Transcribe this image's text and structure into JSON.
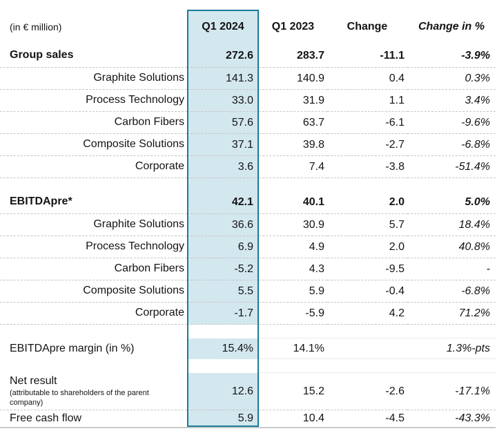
{
  "unit_label": "(in € million)",
  "columns": [
    {
      "label": "Q1 2024"
    },
    {
      "label": "Q1 2023"
    },
    {
      "label": "Change"
    },
    {
      "label": "Change in %"
    }
  ],
  "colors": {
    "highlight_fill": "#d3e7ef",
    "highlight_border": "#1b7b95"
  },
  "rows": [
    {
      "type": "section",
      "label": "Group sales",
      "values": [
        "272.6",
        "283.7",
        "-11.1",
        "-3.9%"
      ]
    },
    {
      "type": "sub",
      "label": "Graphite Solutions",
      "values": [
        "141.3",
        "140.9",
        "0.4",
        "0.3%"
      ]
    },
    {
      "type": "sub",
      "label": "Process Technology",
      "values": [
        "33.0",
        "31.9",
        "1.1",
        "3.4%"
      ]
    },
    {
      "type": "sub",
      "label": "Carbon Fibers",
      "values": [
        "57.6",
        "63.7",
        "-6.1",
        "-9.6%"
      ]
    },
    {
      "type": "sub",
      "label": "Composite Solutions",
      "values": [
        "37.1",
        "39.8",
        "-2.7",
        "-6.8%"
      ]
    },
    {
      "type": "sub",
      "label": "Corporate",
      "values": [
        "3.6",
        "7.4",
        "-3.8",
        "-51.4%"
      ]
    },
    {
      "type": "spacer-highlight",
      "label": "",
      "values": [
        "",
        "",
        "",
        ""
      ]
    },
    {
      "type": "section",
      "label": "EBITDApre*",
      "values": [
        "42.1",
        "40.1",
        "2.0",
        "5.0%"
      ]
    },
    {
      "type": "sub",
      "label": "Graphite Solutions",
      "values": [
        "36.6",
        "30.9",
        "5.7",
        "18.4%"
      ]
    },
    {
      "type": "sub",
      "label": "Process Technology",
      "values": [
        "6.9",
        "4.9",
        "2.0",
        "40.8%"
      ]
    },
    {
      "type": "sub",
      "label": "Carbon Fibers",
      "values": [
        "-5.2",
        "4.3",
        "-9.5",
        "-"
      ]
    },
    {
      "type": "sub",
      "label": "Composite Solutions",
      "values": [
        "5.5",
        "5.9",
        "-0.4",
        "-6.8%"
      ]
    },
    {
      "type": "sub",
      "label": "Corporate",
      "values": [
        "-1.7",
        "-5.9",
        "4.2",
        "71.2%"
      ]
    },
    {
      "type": "spacer-plain",
      "label": "",
      "values": [
        "",
        "",
        "",
        ""
      ]
    },
    {
      "type": "plain",
      "label": "EBITDApre margin (in %)",
      "values": [
        "15.4%",
        "14.1%",
        "",
        "1.3%-pts"
      ]
    },
    {
      "type": "spacer-plain",
      "label": "",
      "values": [
        "",
        "",
        "",
        ""
      ]
    },
    {
      "type": "multi",
      "label": "Net result",
      "sublabel": "(attributable to shareholders of the parent company)",
      "values": [
        "12.6",
        "15.2",
        "-2.6",
        "-17.1%"
      ]
    },
    {
      "type": "plain-last",
      "label": "Free cash flow",
      "values": [
        "5.9",
        "10.4",
        "-4.5",
        "-43.3%"
      ]
    }
  ]
}
